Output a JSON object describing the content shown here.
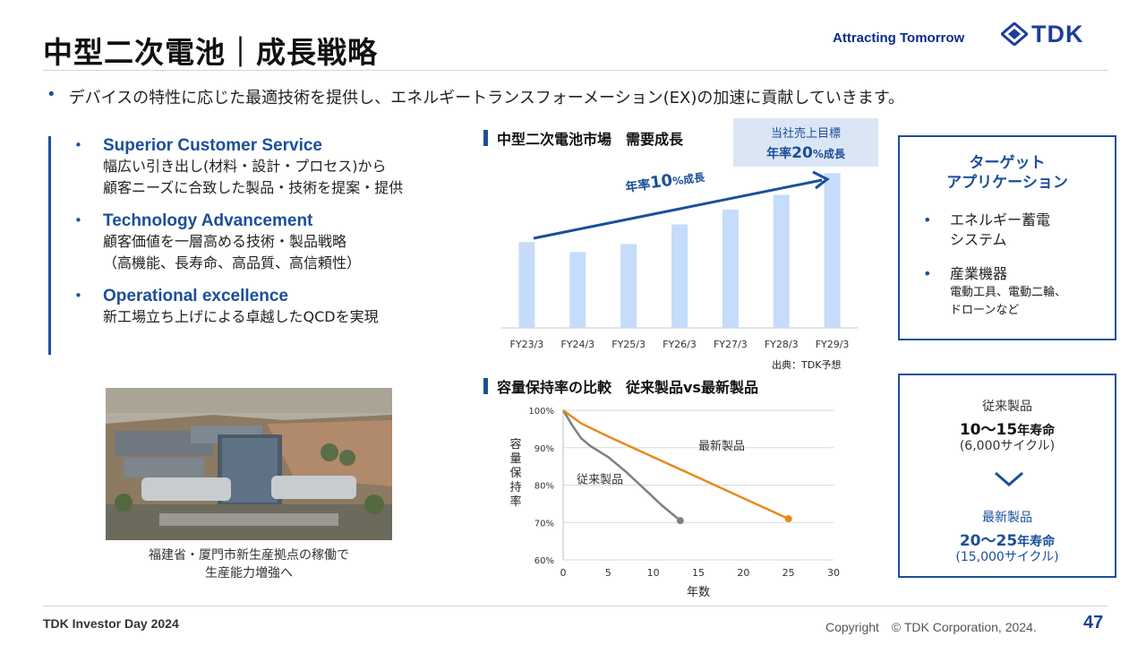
{
  "header": {
    "title": "中型二次電池｜成長戦略",
    "tagline": "Attracting Tomorrow",
    "logo_text": "TDK"
  },
  "lead": {
    "bullet": "•",
    "text": "デバイスの特性に応じた最適技術を提供し、エネルギートランスフォーメーション(EX)の加速に貢献していきます。"
  },
  "strategy": [
    {
      "heading": "Superior Customer Service",
      "lines": [
        "幅広い引き出し(材料・設計・プロセス)から",
        "顧客ニーズに合致した製品・技術を提案・提供"
      ]
    },
    {
      "heading": "Technology Advancement",
      "lines": [
        "顧客価値を一層高める技術・製品戦略",
        "（高機能、長寿命、高品質、高信頼性）"
      ]
    },
    {
      "heading": "Operational excellence",
      "lines": [
        "新工場立ち上げによる卓越したQCDを実現"
      ]
    }
  ],
  "photo": {
    "caption_lines": [
      "福建省・厦門市新生産拠点の稼働で",
      "生産能力増強へ"
    ]
  },
  "demand": {
    "heading": "中型二次電池市場　需要成長",
    "goal_line1": "当社売上目標",
    "goal_line2_pre": "年率",
    "goal_line2_num": "20",
    "goal_line2_post": "%成長",
    "market_pre": "年率",
    "market_num": "10",
    "market_post": "%成長",
    "source": "出典：TDK予想"
  },
  "retention": {
    "heading": "容量保持率の比較　従来製品vs最新製品",
    "ylabel": "容量保持率",
    "xlabel": "年数",
    "label_old": "従来製品",
    "label_new": "最新製品"
  },
  "target": {
    "title_line1": "ターゲット",
    "title_line2": "アプリケーション",
    "items": [
      {
        "label_line1": "エネルギー蓄電",
        "label_line2": "システム"
      },
      {
        "label_line1": "産業機器",
        "sub_line1": "電動工具、電動二輪、",
        "sub_line2": "ドローンなど"
      }
    ]
  },
  "life": {
    "old_label": "従来製品",
    "old_years_num": "10～15",
    "old_years_unit": "年寿命",
    "old_cycles": "(6,000サイクル)",
    "new_label": "最新製品",
    "new_years_num": "20～25",
    "new_years_unit": "年寿命",
    "new_cycles": "(15,000サイクル)"
  },
  "footer": {
    "left": "TDK Investor Day 2024",
    "copyright": "Copyright　© TDK Corporation, 2024.",
    "page": "47"
  },
  "colors": {
    "brand_blue": "#1b4f9a",
    "bar_fill": "#c5dcfa",
    "old_line": "#808080",
    "new_line": "#e8891a"
  },
  "chart_data": [
    {
      "type": "bar",
      "title": "中型二次電池市場　需要成長",
      "categories": [
        "FY23/3",
        "FY24/3",
        "FY25/3",
        "FY26/3",
        "FY27/3",
        "FY28/3",
        "FY29/3"
      ],
      "values": [
        87,
        77,
        85,
        105,
        120,
        135,
        157
      ],
      "ylim": [
        0,
        160
      ],
      "note": "relative values, no y-axis shown",
      "grid": false
    },
    {
      "type": "line",
      "title": "容量保持率の比較　従来製品vs最新製品",
      "xlabel": "年数",
      "ylabel": "容量保持率",
      "xlim": [
        0,
        30
      ],
      "ylim": [
        60,
        100
      ],
      "xticks": [
        0,
        5,
        10,
        15,
        20,
        25,
        30
      ],
      "yticks": [
        "60%",
        "70%",
        "80%",
        "90%",
        "100%"
      ],
      "grid": true,
      "series": [
        {
          "name": "従来製品",
          "x": [
            0,
            1,
            2,
            3,
            5,
            7,
            9,
            11,
            13
          ],
          "y": [
            100,
            96,
            92.5,
            90.5,
            87.5,
            83.5,
            79,
            74.5,
            70.5
          ]
        },
        {
          "name": "最新製品",
          "x": [
            0,
            2,
            5,
            10,
            15,
            20,
            25
          ],
          "y": [
            100,
            96.5,
            93,
            87.5,
            82,
            76.5,
            71
          ]
        }
      ]
    }
  ]
}
